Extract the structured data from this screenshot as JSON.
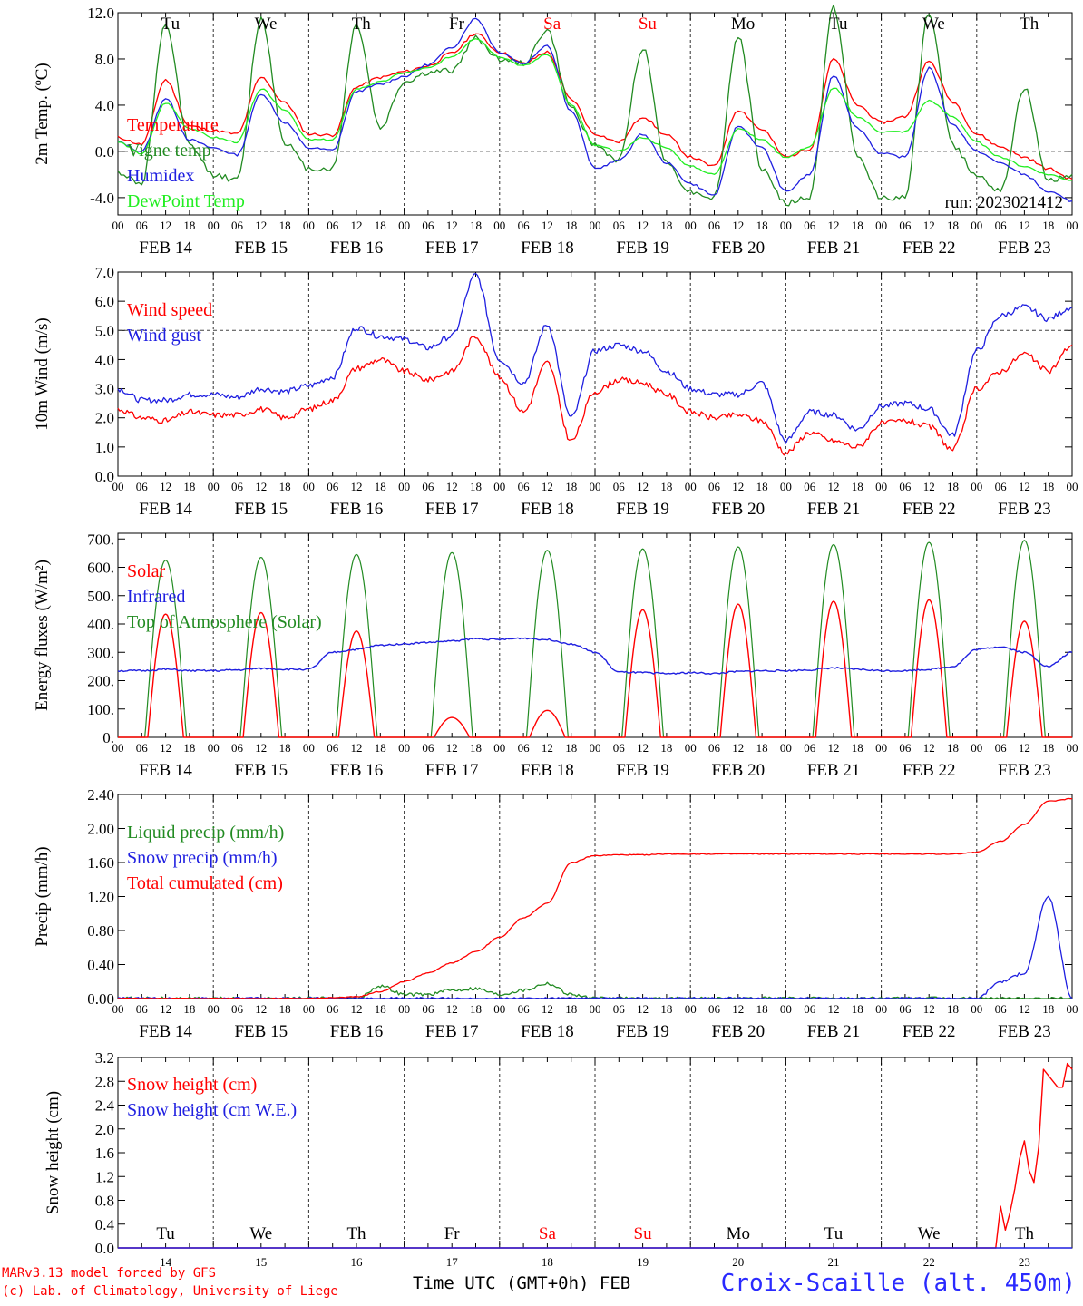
{
  "footer": {
    "model_line": "MARv3.13 model forced by GFS",
    "lab_line": "(c) Lab. of Climatology, University of Liege",
    "time_label": "Time UTC (GMT+0h) FEB",
    "station": "Croix-Scaille (alt. 450m)"
  },
  "colors": {
    "red": "#ff0000",
    "darkgreen": "#228b22",
    "blue": "#1f1fe0",
    "lightgreen": "#22ee22"
  },
  "x_axis": {
    "range_days": [
      0,
      10
    ],
    "hour_ticks": [
      "00",
      "06",
      "12",
      "18"
    ],
    "date_labels": [
      "FEB 14",
      "FEB 15",
      "FEB 16",
      "FEB 17",
      "FEB 18",
      "FEB 19",
      "FEB 20",
      "FEB 21",
      "FEB 22",
      "FEB 23"
    ],
    "day_names": [
      "Tu",
      "We",
      "Th",
      "Fr",
      "Sa",
      "Su",
      "Mo",
      "Tu",
      "We",
      "Th"
    ],
    "day_name_colors": [
      "#000",
      "#000",
      "#000",
      "#000",
      "#ff0000",
      "#ff0000",
      "#000",
      "#000",
      "#000",
      "#000"
    ],
    "bottom_day_numbers": [
      "14",
      "15",
      "16",
      "17",
      "18",
      "19",
      "20",
      "21",
      "22",
      "23"
    ]
  },
  "chart_data": [
    {
      "id": "temp",
      "type": "line",
      "ylabel": "2m Temp. (ºC)",
      "ylim": [
        -5.5,
        12
      ],
      "yticks": [
        12.0,
        8.0,
        4.0,
        0.0,
        -4.0
      ],
      "ytick_labels": [
        "12.0",
        "8.0",
        "4.0",
        "0.0",
        "-4.0"
      ],
      "hline": 0,
      "annotation": "run: 2023021412",
      "x_days": [
        0,
        0.25,
        0.5,
        0.75,
        1,
        1.25,
        1.5,
        1.75,
        2,
        2.25,
        2.5,
        2.75,
        3,
        3.25,
        3.5,
        3.75,
        4,
        4.25,
        4.5,
        4.75,
        5,
        5.25,
        5.5,
        5.75,
        6,
        6.25,
        6.5,
        6.75,
        7,
        7.25,
        7.5,
        7.75,
        8,
        8.25,
        8.5,
        8.75,
        9,
        9.25,
        9.5,
        9.75,
        10
      ],
      "series": [
        {
          "name": "Temperature",
          "color": "#ff0000",
          "values": [
            1.2,
            0.6,
            6.2,
            2.2,
            1.8,
            1.5,
            6.4,
            4.2,
            1.5,
            1.4,
            5.6,
            6.4,
            6.9,
            7.4,
            8.5,
            10.2,
            8.6,
            7.6,
            8.6,
            4.5,
            1.5,
            0.8,
            3.0,
            1.4,
            -0.5,
            -1.3,
            3.6,
            1.9,
            -0.5,
            0.2,
            8.0,
            4.0,
            2.5,
            3.0,
            7.8,
            4.3,
            1.5,
            0.4,
            -0.5,
            -1.5,
            -2.4
          ]
        },
        {
          "name": "Vigne temp",
          "color": "#228b22",
          "values": [
            -1.8,
            -2.8,
            11.0,
            0.5,
            -2.0,
            -2.5,
            11.5,
            0.8,
            -1.5,
            -1.5,
            11.0,
            2.0,
            6.0,
            6.8,
            7.0,
            9.8,
            8.0,
            7.6,
            10.5,
            3.8,
            0.5,
            -0.8,
            9.0,
            -1.0,
            -3.5,
            -4.0,
            10.0,
            -1.5,
            -4.5,
            -4.0,
            12.5,
            -0.5,
            -4.0,
            -4.0,
            12.0,
            0.5,
            -2.0,
            -3.5,
            5.5,
            -2.5,
            -2.0
          ]
        },
        {
          "name": "Humidex",
          "color": "#1f1fe0",
          "values": [
            0.8,
            0.0,
            4.6,
            1.0,
            0.3,
            -0.3,
            5.0,
            2.5,
            0.3,
            0.1,
            5.2,
            5.8,
            6.5,
            7.5,
            9.0,
            11.5,
            8.6,
            7.6,
            9.2,
            3.5,
            -1.5,
            -0.8,
            1.5,
            -1.0,
            -2.8,
            -3.8,
            2.2,
            0.3,
            -3.5,
            -2.0,
            6.6,
            2.0,
            -0.2,
            -0.5,
            7.2,
            2.3,
            0.0,
            -1.0,
            -2.0,
            -3.5,
            -4.3
          ]
        },
        {
          "name": "DewPoint Temp",
          "color": "#22ee22",
          "values": [
            0.8,
            -0.2,
            4.2,
            2.0,
            1.2,
            0.8,
            5.4,
            3.6,
            1.0,
            1.0,
            5.4,
            6.0,
            6.8,
            7.2,
            8.2,
            9.8,
            8.2,
            7.4,
            8.4,
            4.0,
            0.5,
            0.0,
            1.2,
            0.3,
            -1.3,
            -2.0,
            2.0,
            1.0,
            -0.5,
            0.4,
            5.5,
            3.0,
            1.7,
            1.7,
            4.4,
            3.0,
            0.8,
            -0.5,
            -1.3,
            -2.0,
            -2.5
          ]
        }
      ]
    },
    {
      "id": "wind",
      "type": "line",
      "ylabel": "10m Wind (m/s)",
      "ylim": [
        0,
        7
      ],
      "yticks": [
        7,
        6,
        5,
        4,
        3,
        2,
        1,
        0
      ],
      "ytick_labels": [
        "7.0",
        "6.0",
        "5.0",
        "4.0",
        "3.0",
        "2.0",
        "1.0",
        "0.0"
      ],
      "hline": 5,
      "x_days": [
        0,
        0.25,
        0.5,
        0.75,
        1,
        1.25,
        1.5,
        1.75,
        2,
        2.25,
        2.5,
        2.75,
        3,
        3.25,
        3.5,
        3.75,
        4,
        4.25,
        4.5,
        4.75,
        5,
        5.25,
        5.5,
        5.75,
        6,
        6.25,
        6.5,
        6.75,
        7,
        7.25,
        7.5,
        7.75,
        8,
        8.25,
        8.5,
        8.75,
        9,
        9.25,
        9.5,
        9.75,
        10
      ],
      "series": [
        {
          "name": "Wind speed",
          "color": "#ff0000",
          "values": [
            2.3,
            2.0,
            1.9,
            2.2,
            2.1,
            2.1,
            2.3,
            2.0,
            2.3,
            2.6,
            3.7,
            4.0,
            3.6,
            3.3,
            3.6,
            4.8,
            3.4,
            2.2,
            3.9,
            1.2,
            2.9,
            3.3,
            3.2,
            2.8,
            2.2,
            2.0,
            2.1,
            1.9,
            0.8,
            1.5,
            1.2,
            1.0,
            1.8,
            1.9,
            1.7,
            0.9,
            3.0,
            3.6,
            4.2,
            3.6,
            4.5
          ]
        },
        {
          "name": "Wind gust",
          "color": "#1f1fe0",
          "values": [
            3.0,
            2.6,
            2.6,
            2.8,
            2.8,
            2.7,
            3.0,
            2.9,
            3.1,
            3.4,
            5.1,
            4.8,
            4.7,
            4.4,
            4.8,
            6.9,
            4.0,
            3.2,
            5.2,
            2.0,
            4.3,
            4.5,
            4.3,
            3.6,
            3.0,
            2.8,
            2.8,
            3.2,
            1.2,
            2.2,
            2.1,
            1.6,
            2.4,
            2.5,
            2.3,
            1.4,
            4.3,
            5.5,
            5.8,
            5.4,
            5.8
          ]
        }
      ]
    },
    {
      "id": "energy",
      "type": "line",
      "ylabel": "Energy fluxes (W/m²)",
      "ylim": [
        0,
        720
      ],
      "yticks": [
        700,
        600,
        500,
        400,
        300,
        200,
        100,
        0
      ],
      "ytick_labels": [
        "700.",
        "600.",
        "500.",
        "400.",
        "300.",
        "200.",
        "100.",
        "0."
      ],
      "hline": null,
      "x_days": [
        0,
        0.25,
        0.5,
        0.75,
        1,
        1.25,
        1.5,
        1.75,
        2,
        2.25,
        2.5,
        2.75,
        3,
        3.25,
        3.5,
        3.75,
        4,
        4.25,
        4.5,
        4.75,
        5,
        5.25,
        5.5,
        5.75,
        6,
        6.25,
        6.5,
        6.75,
        7,
        7.25,
        7.5,
        7.75,
        8,
        8.25,
        8.5,
        8.75,
        9,
        9.25,
        9.5,
        9.75,
        10
      ],
      "series": [
        {
          "name": "Solar",
          "color": "#ff0000",
          "diurnal_peaks": [
            435,
            440,
            375,
            70,
            95,
            450,
            470,
            480,
            485,
            410
          ],
          "diurnal_shape": {
            "start_h": 7.5,
            "end_h": 16.5
          }
        },
        {
          "name": "Infrared",
          "color": "#1f1fe0",
          "values": [
            235,
            235,
            240,
            235,
            235,
            238,
            243,
            240,
            240,
            300,
            310,
            325,
            330,
            335,
            340,
            348,
            345,
            350,
            345,
            330,
            300,
            230,
            228,
            225,
            228,
            225,
            232,
            235,
            235,
            238,
            245,
            240,
            235,
            235,
            240,
            250,
            310,
            320,
            300,
            250,
            300
          ]
        },
        {
          "name": "Top of Atmosphere (Solar)",
          "color": "#228b22",
          "diurnal_peaks": [
            625,
            635,
            645,
            652,
            660,
            665,
            672,
            680,
            688,
            695
          ],
          "diurnal_shape": {
            "start_h": 6.8,
            "end_h": 17.2
          }
        }
      ]
    },
    {
      "id": "precip",
      "type": "line",
      "ylabel": "Precip (mm/h)",
      "ylim": [
        0,
        2.4
      ],
      "yticks": [
        2.4,
        2.0,
        1.6,
        1.2,
        0.8,
        0.4,
        0.0
      ],
      "ytick_labels": [
        "2.40",
        "2.00",
        "1.60",
        "1.20",
        "0.80",
        "0.40",
        "0.00"
      ],
      "hline": null,
      "x_days": [
        0,
        0.25,
        0.5,
        0.75,
        1,
        1.25,
        1.5,
        1.75,
        2,
        2.25,
        2.5,
        2.75,
        3,
        3.25,
        3.5,
        3.75,
        4,
        4.25,
        4.5,
        4.75,
        5,
        5.25,
        5.5,
        5.75,
        6,
        6.25,
        6.5,
        6.75,
        7,
        7.25,
        7.5,
        7.75,
        8,
        8.25,
        8.5,
        8.75,
        9,
        9.25,
        9.5,
        9.75,
        10
      ],
      "series": [
        {
          "name": "Liquid precip (mm/h)",
          "color": "#228b22",
          "values": [
            0,
            0,
            0,
            0,
            0,
            0,
            0,
            0,
            0,
            0,
            0,
            0.15,
            0.05,
            0.05,
            0.1,
            0.12,
            0.05,
            0.1,
            0.18,
            0.05,
            0,
            0,
            0,
            0,
            0,
            0,
            0,
            0,
            0,
            0,
            0,
            0,
            0,
            0,
            0,
            0,
            0,
            0,
            0,
            0,
            0
          ]
        },
        {
          "name": "Snow precip (mm/h)",
          "color": "#1f1fe0",
          "values": [
            0,
            0,
            0,
            0,
            0,
            0,
            0,
            0,
            0,
            0,
            0,
            0,
            0,
            0,
            0,
            0,
            0,
            0,
            0,
            0,
            0,
            0,
            0,
            0,
            0,
            0,
            0,
            0,
            0,
            0,
            0,
            0,
            0,
            0,
            0,
            0,
            0,
            0.2,
            0.3,
            1.2,
            0
          ]
        },
        {
          "name": "Total cumulated (cm)",
          "color": "#ff0000",
          "values": [
            0,
            0,
            0,
            0,
            0,
            0,
            0,
            0,
            0,
            0.01,
            0.02,
            0.08,
            0.2,
            0.3,
            0.42,
            0.55,
            0.72,
            0.95,
            1.12,
            1.6,
            1.68,
            1.69,
            1.69,
            1.7,
            1.7,
            1.7,
            1.7,
            1.7,
            1.7,
            1.7,
            1.7,
            1.7,
            1.7,
            1.7,
            1.7,
            1.7,
            1.72,
            1.85,
            2.05,
            2.32,
            2.35
          ]
        }
      ]
    },
    {
      "id": "snow",
      "type": "line",
      "ylabel": "Snow height (cm)",
      "ylim": [
        0,
        3.2
      ],
      "yticks": [
        3.2,
        2.8,
        2.4,
        2.0,
        1.6,
        1.2,
        0.8,
        0.4,
        0.0
      ],
      "ytick_labels": [
        "3.2",
        "2.8",
        "2.4",
        "2.0",
        "1.6",
        "1.2",
        "0.8",
        "0.4",
        "0.0"
      ],
      "hline": null,
      "x_days": [
        0,
        1,
        2,
        3,
        4,
        5,
        6,
        7,
        8,
        9,
        9.2,
        9.25,
        9.3,
        9.35,
        9.4,
        9.45,
        9.5,
        9.55,
        9.6,
        9.65,
        9.7,
        9.75,
        9.8,
        9.85,
        9.9,
        9.95,
        10
      ],
      "series": [
        {
          "name": "Snow height (cm)",
          "color": "#ff0000",
          "values": [
            0,
            0,
            0,
            0,
            0,
            0,
            0,
            0,
            0,
            0,
            0,
            0.7,
            0.3,
            0.6,
            1.0,
            1.5,
            1.8,
            1.3,
            1.1,
            1.7,
            3.0,
            2.9,
            2.8,
            2.7,
            2.7,
            3.1,
            3.0
          ]
        },
        {
          "name": "Snow height (cm W.E.)",
          "color": "#1f1fe0",
          "values": [
            0,
            0,
            0,
            0,
            0,
            0,
            0,
            0,
            0,
            0,
            0,
            0,
            0,
            0,
            0,
            0,
            0,
            0,
            0,
            0,
            0,
            0,
            0,
            0,
            0,
            0,
            0
          ]
        }
      ]
    }
  ]
}
